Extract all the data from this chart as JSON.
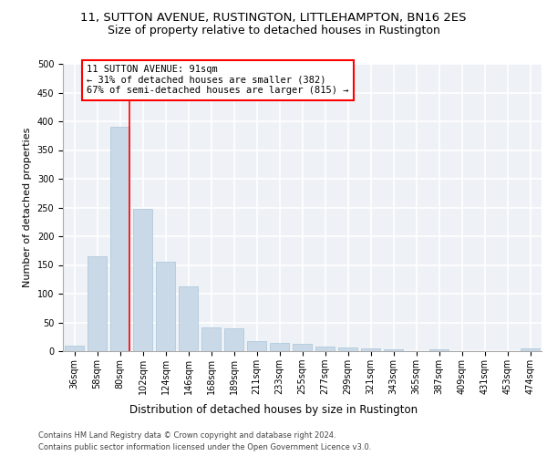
{
  "title1": "11, SUTTON AVENUE, RUSTINGTON, LITTLEHAMPTON, BN16 2ES",
  "title2": "Size of property relative to detached houses in Rustington",
  "xlabel": "Distribution of detached houses by size in Rustington",
  "ylabel": "Number of detached properties",
  "footer1": "Contains HM Land Registry data © Crown copyright and database right 2024.",
  "footer2": "Contains public sector information licensed under the Open Government Licence v3.0.",
  "categories": [
    "36sqm",
    "58sqm",
    "80sqm",
    "102sqm",
    "124sqm",
    "146sqm",
    "168sqm",
    "189sqm",
    "211sqm",
    "233sqm",
    "255sqm",
    "277sqm",
    "299sqm",
    "321sqm",
    "343sqm",
    "365sqm",
    "387sqm",
    "409sqm",
    "431sqm",
    "453sqm",
    "474sqm"
  ],
  "values": [
    10,
    165,
    390,
    248,
    155,
    113,
    42,
    40,
    18,
    15,
    13,
    8,
    6,
    4,
    3,
    0,
    3,
    0,
    0,
    0,
    4
  ],
  "bar_color": "#c9d9e8",
  "bar_edge_color": "#a8c4d8",
  "annotation_text": "11 SUTTON AVENUE: 91sqm\n← 31% of detached houses are smaller (382)\n67% of semi-detached houses are larger (815) →",
  "annotation_box_color": "white",
  "annotation_box_edge_color": "red",
  "vline_x": 2.43,
  "vline_color": "red",
  "ylim": [
    0,
    500
  ],
  "yticks": [
    0,
    50,
    100,
    150,
    200,
    250,
    300,
    350,
    400,
    450,
    500
  ],
  "background_color": "#eef2f7",
  "grid_color": "white",
  "title1_fontsize": 9.5,
  "title2_fontsize": 9,
  "xlabel_fontsize": 8.5,
  "ylabel_fontsize": 8,
  "tick_fontsize": 7,
  "annotation_fontsize": 7.5,
  "footer_fontsize": 6
}
